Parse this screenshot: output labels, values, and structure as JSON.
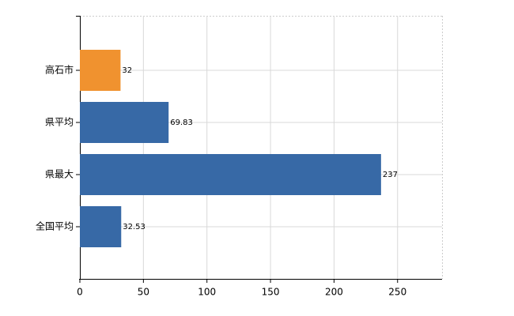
{
  "chart_data": {
    "type": "hbar",
    "categories": [
      "高石市",
      "県平均",
      "県最大",
      "全国平均"
    ],
    "values": [
      32,
      69.83,
      237,
      32.53
    ],
    "colors": [
      "#f0922f",
      "#3769a6",
      "#3769a6",
      "#3769a6"
    ],
    "xlim": [
      0,
      285
    ],
    "xticks": [
      0,
      50,
      100,
      150,
      200,
      250
    ],
    "grid": true
  }
}
